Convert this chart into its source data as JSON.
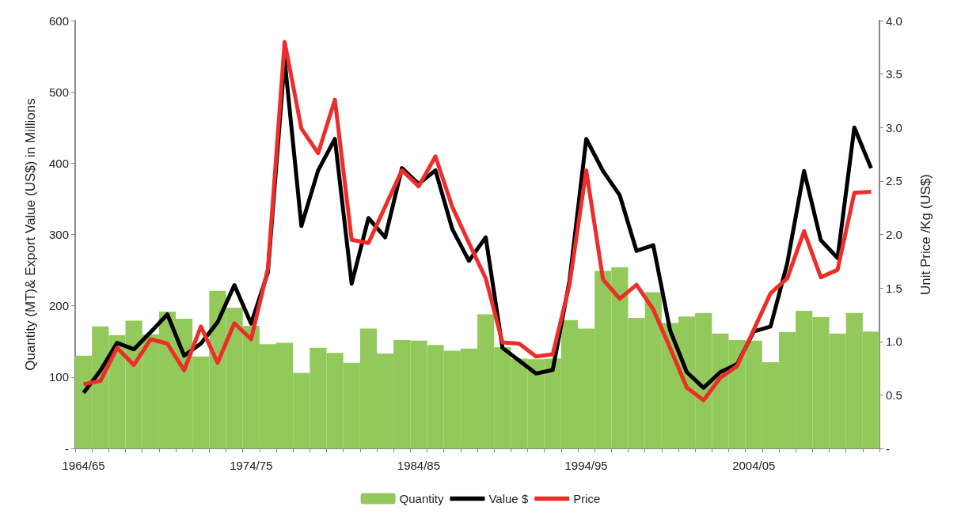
{
  "chart_data": {
    "type": "bar",
    "ylabel": "Quantity (MT)& Export Value (US$) in Millions",
    "y2label": "Unit Price /Kg (US$)",
    "categories": [
      "1964/65",
      null,
      null,
      null,
      null,
      null,
      null,
      null,
      null,
      null,
      "1974/75",
      null,
      null,
      null,
      null,
      null,
      null,
      null,
      null,
      null,
      "1984/85",
      null,
      null,
      null,
      null,
      null,
      null,
      null,
      null,
      null,
      "1994/95",
      null,
      null,
      null,
      null,
      null,
      null,
      null,
      null,
      null,
      "2004/05",
      null,
      null,
      null,
      null,
      null,
      null,
      null
    ],
    "series": [
      {
        "name": "Quantity",
        "color": "#92c95a",
        "values": [
          130,
          171,
          159,
          179,
          160,
          192,
          182,
          129,
          221,
          197,
          172,
          146,
          148,
          106,
          141,
          134,
          120,
          168,
          133,
          152,
          151,
          145,
          137,
          140,
          188,
          142,
          126,
          125,
          126,
          180,
          168,
          249,
          254,
          183,
          219,
          176,
          185,
          190,
          161,
          152,
          151,
          121,
          163,
          193,
          184,
          161,
          190,
          164
        ]
      },
      {
        "name": "Value $",
        "type": "line",
        "color": "#000000",
        "values": [
          78,
          109,
          148,
          139,
          163,
          188,
          130,
          147,
          177,
          229,
          175,
          247,
          545,
          312,
          390,
          434,
          231,
          323,
          296,
          393,
          371,
          390,
          308,
          263,
          296,
          141,
          123,
          105,
          110,
          235,
          434,
          389,
          355,
          277,
          285,
          166,
          107,
          85,
          107,
          118,
          164,
          171,
          260,
          389,
          292,
          267,
          450,
          393
        ]
      },
      {
        "name": "Price",
        "type": "line",
        "axis": "y2",
        "color": "#ee2d2a",
        "values": [
          0.6,
          0.63,
          0.94,
          0.78,
          1.02,
          0.98,
          0.73,
          1.14,
          0.8,
          1.17,
          1.02,
          1.68,
          3.8,
          2.99,
          2.76,
          3.26,
          1.95,
          1.92,
          2.26,
          2.6,
          2.45,
          2.73,
          2.26,
          1.92,
          1.59,
          0.99,
          0.98,
          0.86,
          0.88,
          1.53,
          2.6,
          1.58,
          1.4,
          1.53,
          1.3,
          0.94,
          0.57,
          0.45,
          0.66,
          0.77,
          1.11,
          1.45,
          1.59,
          2.03,
          1.6,
          1.67,
          2.39,
          2.4
        ]
      }
    ],
    "ylim": [
      0,
      600
    ],
    "yticks": [
      {
        "value": 0,
        "label": "-"
      },
      100,
      200,
      300,
      400,
      500,
      600
    ],
    "y2lim": [
      0,
      4
    ],
    "y2ticks": [
      {
        "value": 0,
        "label": "-"
      },
      0.5,
      {
        "value": 1,
        "label": "1.0"
      },
      1.5,
      {
        "value": 2,
        "label": "2.0"
      },
      2.5,
      {
        "value": 3,
        "label": "3.0"
      },
      3.5,
      {
        "value": 4,
        "label": "4.0"
      }
    ],
    "grid": false,
    "legend": "bottom",
    "marker": "none",
    "line_style": "solid"
  }
}
